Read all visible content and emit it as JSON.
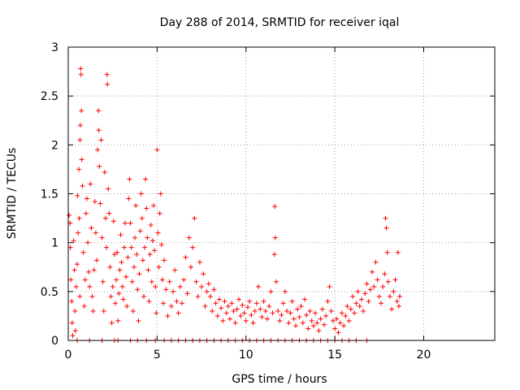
{
  "chart_data": {
    "type": "scatter",
    "title": "Day 288 of 2014, SRMTID for receiver iqal",
    "xlabel": "GPS time / hours",
    "ylabel": "SRMTID / TECUs",
    "xlim": [
      0,
      24
    ],
    "ylim": [
      0,
      3
    ],
    "xticks": [
      0,
      5,
      10,
      15,
      20
    ],
    "xtick_labels": [
      "0",
      "5",
      "10",
      "15",
      "20"
    ],
    "yticks": [
      0,
      0.5,
      1,
      1.5,
      2,
      2.5,
      3
    ],
    "ytick_labels": [
      "0",
      "0.5",
      "1",
      "1.5",
      "2",
      "2.5",
      "3"
    ],
    "grid": true,
    "marker": "+",
    "series": [
      {
        "name": "SRMTID",
        "color": "#ff0000",
        "points": [
          [
            0.05,
            1.28
          ],
          [
            0.1,
            1.2
          ],
          [
            0.12,
            0.95
          ],
          [
            0.15,
            0.62
          ],
          [
            0.2,
            0.4
          ],
          [
            0.22,
            0.18
          ],
          [
            0.25,
            0.05
          ],
          [
            0.3,
            1.02
          ],
          [
            0.35,
            0.72
          ],
          [
            0.38,
            0.3
          ],
          [
            0.4,
            0.1
          ],
          [
            0.45,
            0.55
          ],
          [
            0.5,
            0.78
          ],
          [
            0.52,
            1.48
          ],
          [
            0.55,
            1.1
          ],
          [
            0.6,
            1.75
          ],
          [
            0.62,
            1.25
          ],
          [
            0.65,
            0.45
          ],
          [
            0.66,
            2.05
          ],
          [
            0.68,
            2.2
          ],
          [
            0.7,
            2.78
          ],
          [
            0.72,
            2.72
          ],
          [
            0.74,
            2.35
          ],
          [
            0.76,
            1.85
          ],
          [
            0.8,
            1.58
          ],
          [
            0.85,
            0.9
          ],
          [
            0.9,
            0.35
          ],
          [
            0.95,
            0.62
          ],
          [
            1.0,
            1.3
          ],
          [
            1.05,
            1.45
          ],
          [
            1.1,
            1.0
          ],
          [
            1.15,
            0.7
          ],
          [
            1.2,
            0.55
          ],
          [
            1.25,
            1.6
          ],
          [
            1.3,
            1.15
          ],
          [
            1.35,
            0.45
          ],
          [
            1.4,
            0.3
          ],
          [
            1.45,
            0.72
          ],
          [
            1.5,
            1.42
          ],
          [
            1.55,
            1.1
          ],
          [
            1.6,
            0.82
          ],
          [
            1.65,
            1.95
          ],
          [
            1.7,
            2.35
          ],
          [
            1.72,
            2.15
          ],
          [
            1.75,
            1.78
          ],
          [
            1.8,
            1.4
          ],
          [
            1.85,
            2.05
          ],
          [
            1.9,
            1.05
          ],
          [
            1.95,
            0.6
          ],
          [
            2.0,
            0.3
          ],
          [
            2.05,
            1.72
          ],
          [
            2.1,
            1.25
          ],
          [
            2.15,
            0.95
          ],
          [
            2.18,
            2.72
          ],
          [
            2.2,
            2.62
          ],
          [
            2.25,
            1.55
          ],
          [
            2.3,
            1.3
          ],
          [
            2.35,
            0.75
          ],
          [
            2.4,
            0.45
          ],
          [
            2.45,
            0.18
          ],
          [
            2.5,
            0.55
          ],
          [
            2.55,
            1.22
          ],
          [
            2.6,
            0.88
          ],
          [
            2.65,
            0.38
          ],
          [
            2.7,
            0.62
          ],
          [
            2.75,
            0.9
          ],
          [
            2.8,
            0.2
          ],
          [
            2.85,
            0.48
          ],
          [
            2.9,
            0.72
          ],
          [
            2.95,
            1.08
          ],
          [
            3.0,
            0.8
          ],
          [
            3.05,
            0.55
          ],
          [
            3.1,
            0.42
          ],
          [
            3.15,
            0.95
          ],
          [
            3.2,
            1.2
          ],
          [
            3.25,
            0.65
          ],
          [
            3.3,
            0.35
          ],
          [
            3.35,
            0.85
          ],
          [
            3.4,
            1.45
          ],
          [
            3.45,
            1.65
          ],
          [
            3.5,
            1.2
          ],
          [
            3.55,
            0.95
          ],
          [
            3.6,
            0.6
          ],
          [
            3.65,
            0.3
          ],
          [
            3.7,
            0.75
          ],
          [
            3.75,
            1.05
          ],
          [
            3.8,
            1.38
          ],
          [
            3.85,
            0.88
          ],
          [
            3.9,
            0.52
          ],
          [
            3.95,
            0.2
          ],
          [
            4.0,
            0.68
          ],
          [
            4.05,
            1.12
          ],
          [
            4.1,
            1.5
          ],
          [
            4.15,
            1.25
          ],
          [
            4.2,
            0.82
          ],
          [
            4.25,
            0.45
          ],
          [
            4.3,
            0.95
          ],
          [
            4.35,
            1.65
          ],
          [
            4.4,
            1.35
          ],
          [
            4.45,
            1.05
          ],
          [
            4.5,
            0.72
          ],
          [
            4.55,
            0.4
          ],
          [
            4.6,
            0.88
          ],
          [
            4.65,
            1.18
          ],
          [
            4.7,
            0.6
          ],
          [
            4.75,
            1.02
          ],
          [
            4.8,
            1.38
          ],
          [
            4.85,
            0.92
          ],
          [
            4.9,
            0.55
          ],
          [
            4.95,
            0.28
          ],
          [
            5.0,
            1.95
          ],
          [
            5.05,
            1.1
          ],
          [
            5.1,
            0.75
          ],
          [
            5.15,
            1.3
          ],
          [
            5.2,
            1.5
          ],
          [
            5.25,
            0.98
          ],
          [
            5.3,
            0.62
          ],
          [
            5.35,
            0.38
          ],
          [
            5.4,
            0.82
          ],
          [
            5.5,
            0.52
          ],
          [
            5.6,
            0.25
          ],
          [
            5.7,
            0.6
          ],
          [
            5.8,
            0.35
          ],
          [
            5.9,
            0.5
          ],
          [
            6.0,
            0.72
          ],
          [
            6.1,
            0.4
          ],
          [
            6.2,
            0.28
          ],
          [
            6.3,
            0.55
          ],
          [
            6.4,
            0.38
          ],
          [
            6.5,
            0.62
          ],
          [
            6.6,
            0.85
          ],
          [
            6.7,
            0.48
          ],
          [
            6.8,
            1.05
          ],
          [
            6.9,
            0.75
          ],
          [
            7.0,
            0.95
          ],
          [
            7.1,
            1.25
          ],
          [
            7.2,
            0.6
          ],
          [
            7.3,
            0.45
          ],
          [
            7.4,
            0.8
          ],
          [
            7.5,
            0.55
          ],
          [
            7.6,
            0.68
          ],
          [
            7.7,
            0.35
          ],
          [
            7.8,
            0.5
          ],
          [
            7.9,
            0.58
          ],
          [
            8.0,
            0.45
          ],
          [
            8.1,
            0.3
          ],
          [
            8.2,
            0.52
          ],
          [
            8.3,
            0.38
          ],
          [
            8.4,
            0.25
          ],
          [
            8.5,
            0.42
          ],
          [
            8.6,
            0.33
          ],
          [
            8.7,
            0.2
          ],
          [
            8.8,
            0.4
          ],
          [
            8.9,
            0.28
          ],
          [
            9.0,
            0.35
          ],
          [
            9.1,
            0.22
          ],
          [
            9.2,
            0.38
          ],
          [
            9.3,
            0.3
          ],
          [
            9.4,
            0.18
          ],
          [
            9.5,
            0.32
          ],
          [
            9.6,
            0.42
          ],
          [
            9.7,
            0.25
          ],
          [
            9.8,
            0.36
          ],
          [
            9.9,
            0.28
          ],
          [
            10.0,
            0.2
          ],
          [
            10.1,
            0.34
          ],
          [
            10.2,
            0.4
          ],
          [
            10.3,
            0.26
          ],
          [
            10.4,
            0.18
          ],
          [
            10.5,
            0.3
          ],
          [
            10.6,
            0.38
          ],
          [
            10.7,
            0.55
          ],
          [
            10.8,
            0.32
          ],
          [
            10.9,
            0.24
          ],
          [
            11.0,
            0.4
          ],
          [
            11.1,
            0.3
          ],
          [
            11.2,
            0.22
          ],
          [
            11.3,
            0.35
          ],
          [
            11.4,
            0.5
          ],
          [
            11.5,
            0.28
          ],
          [
            11.6,
            0.88
          ],
          [
            11.62,
            1.37
          ],
          [
            11.65,
            1.05
          ],
          [
            11.7,
            0.6
          ],
          [
            11.8,
            0.3
          ],
          [
            11.9,
            0.2
          ],
          [
            12.0,
            0.26
          ],
          [
            12.1,
            0.38
          ],
          [
            12.2,
            0.5
          ],
          [
            12.3,
            0.3
          ],
          [
            12.4,
            0.18
          ],
          [
            12.5,
            0.28
          ],
          [
            12.6,
            0.4
          ],
          [
            12.7,
            0.22
          ],
          [
            12.8,
            0.15
          ],
          [
            12.9,
            0.32
          ],
          [
            13.0,
            0.24
          ],
          [
            13.1,
            0.35
          ],
          [
            13.2,
            0.18
          ],
          [
            13.3,
            0.42
          ],
          [
            13.4,
            0.26
          ],
          [
            13.5,
            0.12
          ],
          [
            13.6,
            0.3
          ],
          [
            13.7,
            0.2
          ],
          [
            13.8,
            0.15
          ],
          [
            13.9,
            0.28
          ],
          [
            14.0,
            0.18
          ],
          [
            14.1,
            0.1
          ],
          [
            14.2,
            0.22
          ],
          [
            14.3,
            0.32
          ],
          [
            14.4,
            0.16
          ],
          [
            14.5,
            0.25
          ],
          [
            14.6,
            0.4
          ],
          [
            14.7,
            0.55
          ],
          [
            14.8,
            0.3
          ],
          [
            14.9,
            0.2
          ],
          [
            15.0,
            0.12
          ],
          [
            15.1,
            0.22
          ],
          [
            15.2,
            0.08
          ],
          [
            15.3,
            0.18
          ],
          [
            15.4,
            0.28
          ],
          [
            15.5,
            0.15
          ],
          [
            15.6,
            0.25
          ],
          [
            15.7,
            0.35
          ],
          [
            15.8,
            0.2
          ],
          [
            15.9,
            0.32
          ],
          [
            16.0,
            0.45
          ],
          [
            16.1,
            0.28
          ],
          [
            16.2,
            0.38
          ],
          [
            16.3,
            0.5
          ],
          [
            16.4,
            0.35
          ],
          [
            16.5,
            0.42
          ],
          [
            16.6,
            0.3
          ],
          [
            16.7,
            0.48
          ],
          [
            16.8,
            0.58
          ],
          [
            16.9,
            0.4
          ],
          [
            17.0,
            0.52
          ],
          [
            17.1,
            0.7
          ],
          [
            17.2,
            0.55
          ],
          [
            17.3,
            0.8
          ],
          [
            17.4,
            0.62
          ],
          [
            17.5,
            0.45
          ],
          [
            17.6,
            0.38
          ],
          [
            17.7,
            0.55
          ],
          [
            17.8,
            0.68
          ],
          [
            17.85,
            1.25
          ],
          [
            17.9,
            1.15
          ],
          [
            17.95,
            0.9
          ],
          [
            18.0,
            0.6
          ],
          [
            18.1,
            0.45
          ],
          [
            18.2,
            0.32
          ],
          [
            18.3,
            0.5
          ],
          [
            18.4,
            0.62
          ],
          [
            18.5,
            0.4
          ],
          [
            18.55,
            0.9
          ],
          [
            18.6,
            0.35
          ],
          [
            18.65,
            0.45
          ],
          [
            0.5,
            0
          ],
          [
            1.2,
            0
          ],
          [
            1.9,
            0
          ],
          [
            2.6,
            0
          ],
          [
            2.8,
            0
          ],
          [
            3.5,
            0
          ],
          [
            3.9,
            0
          ],
          [
            4.4,
            0
          ],
          [
            4.9,
            0
          ],
          [
            5.4,
            0
          ],
          [
            5.8,
            0
          ],
          [
            6.2,
            0
          ],
          [
            6.6,
            0
          ],
          [
            7.0,
            0
          ],
          [
            7.4,
            0
          ],
          [
            7.8,
            0
          ],
          [
            8.2,
            0
          ],
          [
            8.6,
            0
          ],
          [
            9.0,
            0
          ],
          [
            9.4,
            0
          ],
          [
            9.8,
            0
          ],
          [
            10.2,
            0
          ],
          [
            10.6,
            0
          ],
          [
            11.0,
            0
          ],
          [
            11.4,
            0
          ],
          [
            11.8,
            0
          ],
          [
            12.2,
            0
          ],
          [
            12.6,
            0
          ],
          [
            13.0,
            0
          ],
          [
            13.4,
            0
          ],
          [
            13.8,
            0
          ],
          [
            14.2,
            0
          ],
          [
            14.6,
            0
          ],
          [
            15.0,
            0
          ],
          [
            15.4,
            0
          ],
          [
            15.8,
            0
          ],
          [
            16.2,
            0
          ],
          [
            16.8,
            0
          ]
        ]
      }
    ]
  }
}
